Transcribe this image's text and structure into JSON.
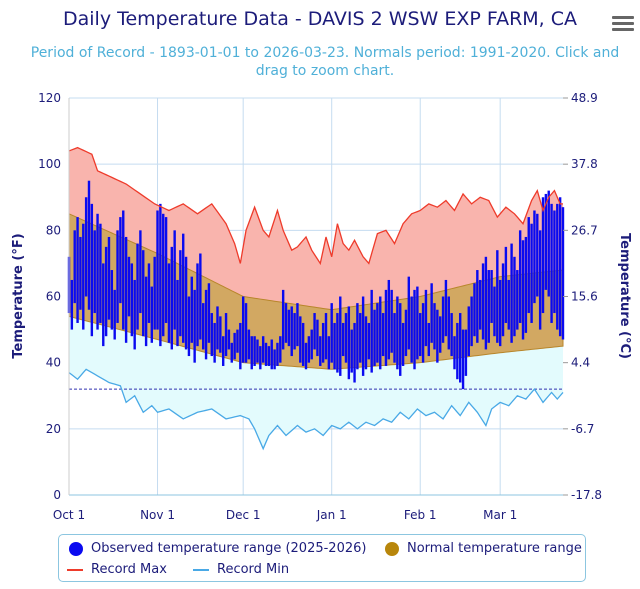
{
  "header": {
    "title": "Daily Temperature Data - DAVIS 2 WSW EXP FARM, CA",
    "subtitle": "Period of Record - 1893-01-01 to 2026-03-23. Normals period: 1991-2020. Click and drag to zoom chart.",
    "menu_icon": "hamburger-menu-icon"
  },
  "colors": {
    "observed": "#0a0af0",
    "normal_fill": "#d2a862",
    "normal_edge": "#b8862b",
    "record_max_line": "#ee3b2b",
    "record_max_fill": "#f9b4ad",
    "record_min_line": "#49a9e6",
    "record_min_fill": "#e3fbfd",
    "grid": "#c5dcf0",
    "axis_text": "#1c1c7a"
  },
  "chart_data": {
    "type": "bar",
    "title": "Daily Temperature Data - DAVIS 2 WSW EXP FARM, CA",
    "ylabel": "Temperature (°F)",
    "ylabel_right": "Temperature (°C)",
    "ylim": [
      0,
      120
    ],
    "yticks": [
      0,
      20,
      40,
      60,
      80,
      100,
      120
    ],
    "yticks_right": [
      "-17.8",
      "-6.7",
      "4.4",
      "15.6",
      "26.7",
      "37.8",
      "48.9"
    ],
    "xticks": [
      {
        "label": "Oct 1",
        "day": 0
      },
      {
        "label": "Nov 1",
        "day": 31
      },
      {
        "label": "Dec 1",
        "day": 61
      },
      {
        "label": "Jan 1",
        "day": 92
      },
      {
        "label": "Feb 1",
        "day": 123
      },
      {
        "label": "Mar 1",
        "day": 151
      }
    ],
    "num_days": 174,
    "freezing_line": 32,
    "legend": {
      "observed": "Observed temperature range (2025-2026)",
      "normal": "Normal temperature range",
      "record_max": "Record Max",
      "record_min": "Record Min"
    },
    "record_max": [
      [
        0,
        104
      ],
      [
        3,
        105
      ],
      [
        8,
        103
      ],
      [
        10,
        98
      ],
      [
        15,
        96
      ],
      [
        20,
        94
      ],
      [
        25,
        91
      ],
      [
        30,
        88
      ],
      [
        35,
        86
      ],
      [
        40,
        88
      ],
      [
        45,
        85
      ],
      [
        50,
        88
      ],
      [
        55,
        82
      ],
      [
        58,
        76
      ],
      [
        60,
        70
      ],
      [
        62,
        80
      ],
      [
        65,
        87
      ],
      [
        68,
        80
      ],
      [
        70,
        78
      ],
      [
        73,
        86
      ],
      [
        75,
        80
      ],
      [
        78,
        74
      ],
      [
        80,
        75
      ],
      [
        83,
        78
      ],
      [
        85,
        74
      ],
      [
        88,
        70
      ],
      [
        90,
        78
      ],
      [
        92,
        72
      ],
      [
        94,
        82
      ],
      [
        96,
        76
      ],
      [
        98,
        74
      ],
      [
        100,
        77
      ],
      [
        103,
        72
      ],
      [
        105,
        70
      ],
      [
        108,
        79
      ],
      [
        111,
        80
      ],
      [
        114,
        76
      ],
      [
        117,
        82
      ],
      [
        120,
        85
      ],
      [
        123,
        86
      ],
      [
        126,
        88
      ],
      [
        129,
        87
      ],
      [
        132,
        89
      ],
      [
        135,
        86
      ],
      [
        138,
        91
      ],
      [
        141,
        88
      ],
      [
        144,
        90
      ],
      [
        147,
        89
      ],
      [
        150,
        84
      ],
      [
        153,
        87
      ],
      [
        156,
        85
      ],
      [
        159,
        82
      ],
      [
        162,
        89
      ],
      [
        164,
        92
      ],
      [
        166,
        86
      ],
      [
        168,
        90
      ],
      [
        170,
        92
      ],
      [
        172,
        88
      ],
      [
        173,
        88
      ]
    ],
    "record_min": [
      [
        0,
        37
      ],
      [
        3,
        35
      ],
      [
        6,
        38
      ],
      [
        10,
        36
      ],
      [
        14,
        34
      ],
      [
        18,
        33
      ],
      [
        20,
        28
      ],
      [
        23,
        30
      ],
      [
        26,
        25
      ],
      [
        29,
        27
      ],
      [
        31,
        25
      ],
      [
        35,
        26
      ],
      [
        40,
        23
      ],
      [
        45,
        25
      ],
      [
        50,
        26
      ],
      [
        55,
        23
      ],
      [
        60,
        24
      ],
      [
        63,
        23
      ],
      [
        65,
        20
      ],
      [
        68,
        14
      ],
      [
        70,
        18
      ],
      [
        73,
        21
      ],
      [
        76,
        18
      ],
      [
        80,
        21
      ],
      [
        83,
        19
      ],
      [
        86,
        20
      ],
      [
        89,
        18
      ],
      [
        92,
        21
      ],
      [
        95,
        20
      ],
      [
        98,
        22
      ],
      [
        101,
        20
      ],
      [
        104,
        22
      ],
      [
        107,
        21
      ],
      [
        110,
        23
      ],
      [
        113,
        22
      ],
      [
        116,
        25
      ],
      [
        119,
        23
      ],
      [
        122,
        26
      ],
      [
        125,
        24
      ],
      [
        128,
        25
      ],
      [
        131,
        23
      ],
      [
        134,
        27
      ],
      [
        137,
        24
      ],
      [
        140,
        28
      ],
      [
        143,
        25
      ],
      [
        146,
        21
      ],
      [
        148,
        26
      ],
      [
        151,
        28
      ],
      [
        154,
        27
      ],
      [
        157,
        30
      ],
      [
        160,
        29
      ],
      [
        163,
        32
      ],
      [
        166,
        28
      ],
      [
        169,
        31
      ],
      [
        171,
        29
      ],
      [
        173,
        31
      ]
    ],
    "normal_high": [
      [
        0,
        85
      ],
      [
        31,
        73
      ],
      [
        61,
        60
      ],
      [
        92,
        56
      ],
      [
        123,
        60
      ],
      [
        151,
        66
      ],
      [
        173,
        68
      ]
    ],
    "normal_low": [
      [
        0,
        54
      ],
      [
        31,
        47
      ],
      [
        61,
        40
      ],
      [
        92,
        38
      ],
      [
        123,
        40
      ],
      [
        151,
        43
      ],
      [
        173,
        45
      ]
    ],
    "observed_high": [
      72,
      65,
      80,
      84,
      78,
      82,
      90,
      95,
      88,
      80,
      85,
      82,
      70,
      75,
      78,
      68,
      62,
      80,
      84,
      86,
      78,
      72,
      70,
      65,
      76,
      80,
      74,
      66,
      70,
      63,
      72,
      86,
      88,
      85,
      84,
      70,
      75,
      80,
      65,
      74,
      79,
      72,
      60,
      66,
      62,
      70,
      73,
      58,
      62,
      64,
      55,
      52,
      57,
      54,
      48,
      55,
      50,
      46,
      49,
      50,
      52,
      60,
      58,
      50,
      48,
      48,
      47,
      45,
      48,
      46,
      45,
      47,
      44,
      46,
      48,
      62,
      58,
      56,
      57,
      55,
      58,
      54,
      52,
      46,
      48,
      50,
      55,
      53,
      48,
      52,
      55,
      48,
      58,
      52,
      55,
      60,
      52,
      55,
      57,
      50,
      52,
      58,
      55,
      60,
      54,
      52,
      62,
      56,
      58,
      60,
      55,
      62,
      65,
      62,
      55,
      60,
      58,
      52,
      56,
      66,
      60,
      62,
      63,
      55,
      58,
      62,
      52,
      64,
      58,
      56,
      54,
      60,
      65,
      60,
      55,
      48,
      52,
      55,
      50,
      50,
      57,
      60,
      64,
      68,
      65,
      70,
      72,
      68,
      68,
      63,
      74,
      65,
      70,
      75,
      65,
      76,
      72,
      68,
      80,
      77,
      78,
      84,
      82,
      86,
      85,
      80,
      90,
      91,
      92,
      88,
      86,
      88,
      90,
      87
    ],
    "observed_low": [
      55,
      50,
      58,
      52,
      56,
      50,
      60,
      56,
      48,
      55,
      50,
      52,
      45,
      48,
      53,
      50,
      47,
      52,
      58,
      50,
      46,
      54,
      48,
      44,
      50,
      55,
      48,
      45,
      52,
      46,
      50,
      50,
      45,
      48,
      52,
      46,
      44,
      50,
      45,
      48,
      46,
      44,
      42,
      46,
      40,
      45,
      47,
      44,
      41,
      46,
      42,
      40,
      44,
      43,
      39,
      42,
      44,
      40,
      41,
      43,
      38,
      40,
      40,
      41,
      38,
      39,
      40,
      38,
      40,
      39,
      39,
      38,
      38,
      39,
      40,
      44,
      46,
      45,
      42,
      44,
      45,
      40,
      39,
      38,
      40,
      41,
      44,
      42,
      39,
      40,
      41,
      38,
      40,
      38,
      37,
      36,
      42,
      40,
      35,
      37,
      34,
      38,
      40,
      36,
      38,
      41,
      37,
      39,
      40,
      38,
      42,
      39,
      41,
      43,
      40,
      38,
      36,
      39,
      42,
      44,
      40,
      38,
      41,
      42,
      40,
      45,
      42,
      46,
      44,
      40,
      43,
      46,
      48,
      44,
      42,
      38,
      35,
      34,
      32,
      36,
      42,
      45,
      48,
      46,
      50,
      47,
      44,
      46,
      52,
      48,
      46,
      45,
      48,
      52,
      50,
      46,
      48,
      50,
      52,
      47,
      49,
      55,
      52,
      58,
      60,
      50,
      55,
      62,
      60,
      52,
      55,
      50,
      48,
      47
    ]
  }
}
